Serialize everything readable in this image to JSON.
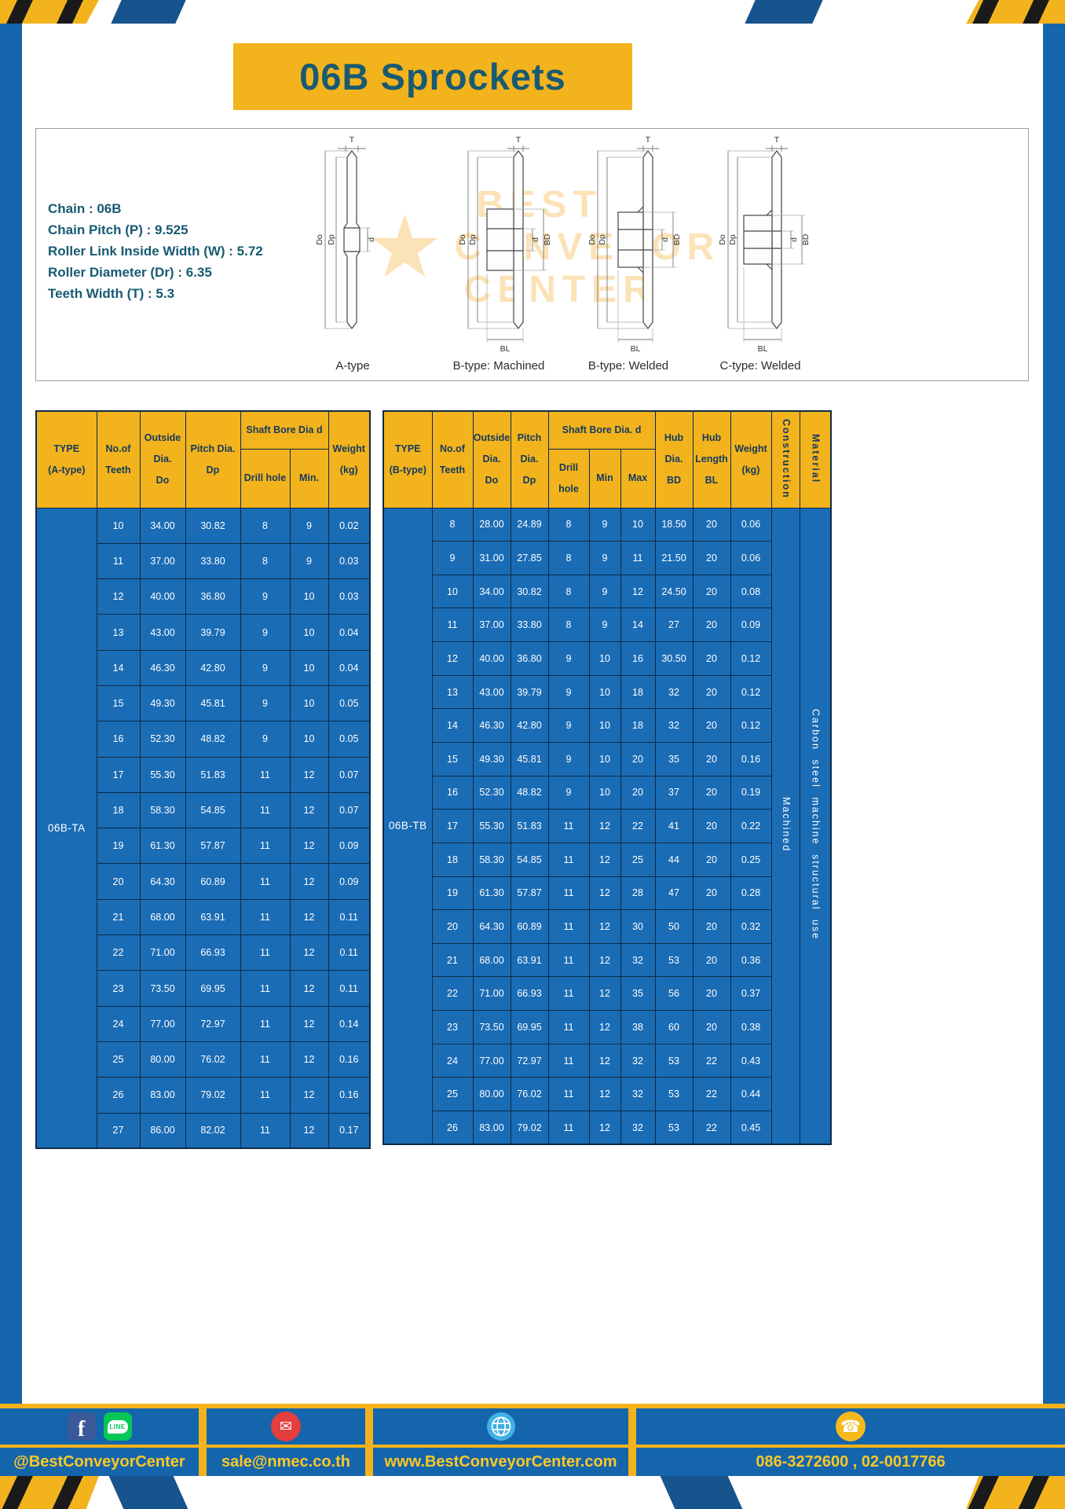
{
  "colors": {
    "frame_blue": "#1565ac",
    "cell_blue": "#1a6cb5",
    "accent_yellow": "#f2b31c",
    "header_text_navy": "#14395e",
    "title_teal": "#195a73",
    "footer_text_yellow": "#ffc726",
    "deco_blue": "#17538c",
    "facebook_blue": "#3b5998",
    "line_green": "#06c755",
    "mail_red": "#e53e3e",
    "globe_blue": "#41b0e4",
    "phone_gold": "#f5b91e"
  },
  "title": "06B Sprockets",
  "specs": [
    "Chain : 06B",
    "Chain Pitch (P) : 9.525",
    "Roller Link Inside Width (W) : 5.72",
    "Roller Diameter (Dr) : 6.35",
    "Teeth Width (T) : 5.3"
  ],
  "watermark": {
    "star": "★",
    "line1": "BEST",
    "line2": "CONVEYOR",
    "line3": "CENTER"
  },
  "diagram": {
    "captions": [
      "A-type",
      "B-type: Machined",
      "B-type: Welded",
      "C-type: Welded"
    ],
    "labels": {
      "t": "T",
      "do": "Do",
      "dp": "Dp",
      "d": "d",
      "bd": "BD",
      "bl": "BL"
    }
  },
  "table_a": {
    "headers": {
      "type": "TYPE\n(A-type)",
      "teeth": "No.of\nTeeth",
      "outside": "Outside\nDia.\nDo",
      "pitch": "Pitch Dia.\nDp",
      "shaft_bore": "Shaft Bore Dia d",
      "drill": "Drill hole",
      "min": "Min.",
      "weight": "Weight\n(kg)"
    },
    "type_value": "06B-TA",
    "rows": [
      [
        "10",
        "34.00",
        "30.82",
        "8",
        "9",
        "0.02"
      ],
      [
        "11",
        "37.00",
        "33.80",
        "8",
        "9",
        "0.03"
      ],
      [
        "12",
        "40.00",
        "36.80",
        "9",
        "10",
        "0.03"
      ],
      [
        "13",
        "43.00",
        "39.79",
        "9",
        "10",
        "0.04"
      ],
      [
        "14",
        "46.30",
        "42.80",
        "9",
        "10",
        "0.04"
      ],
      [
        "15",
        "49.30",
        "45.81",
        "9",
        "10",
        "0.05"
      ],
      [
        "16",
        "52.30",
        "48.82",
        "9",
        "10",
        "0.05"
      ],
      [
        "17",
        "55.30",
        "51.83",
        "11",
        "12",
        "0.07"
      ],
      [
        "18",
        "58.30",
        "54.85",
        "11",
        "12",
        "0.07"
      ],
      [
        "19",
        "61.30",
        "57.87",
        "11",
        "12",
        "0.09"
      ],
      [
        "20",
        "64.30",
        "60.89",
        "11",
        "12",
        "0.09"
      ],
      [
        "21",
        "68.00",
        "63.91",
        "11",
        "12",
        "0.11"
      ],
      [
        "22",
        "71.00",
        "66.93",
        "11",
        "12",
        "0.11"
      ],
      [
        "23",
        "73.50",
        "69.95",
        "11",
        "12",
        "0.11"
      ],
      [
        "24",
        "77.00",
        "72.97",
        "11",
        "12",
        "0.14"
      ],
      [
        "25",
        "80.00",
        "76.02",
        "11",
        "12",
        "0.16"
      ],
      [
        "26",
        "83.00",
        "79.02",
        "11",
        "12",
        "0.16"
      ],
      [
        "27",
        "86.00",
        "82.02",
        "11",
        "12",
        "0.17"
      ]
    ]
  },
  "table_b": {
    "headers": {
      "type": "TYPE\n(B-type)",
      "teeth": "No.of\nTeeth",
      "outside": "Outside\nDia.\nDo",
      "pitch": "Pitch\nDia.\nDp",
      "shaft_bore": "Shaft Bore Dia. d",
      "drill": "Drill hole",
      "min": "Min",
      "max": "Max",
      "hub_dia": "Hub\nDia.\nBD",
      "hub_len": "Hub\nLength\nBL",
      "weight": "Weight\n(kg)",
      "construction": "Construction",
      "material": "Material"
    },
    "type_value": "06B-TB",
    "construction_value": "Machined",
    "material_value": "Carbon steel machine structural use",
    "rows": [
      [
        "8",
        "28.00",
        "24.89",
        "8",
        "9",
        "10",
        "18.50",
        "20",
        "0.06"
      ],
      [
        "9",
        "31.00",
        "27.85",
        "8",
        "9",
        "11",
        "21.50",
        "20",
        "0.06"
      ],
      [
        "10",
        "34.00",
        "30.82",
        "8",
        "9",
        "12",
        "24.50",
        "20",
        "0.08"
      ],
      [
        "11",
        "37.00",
        "33.80",
        "8",
        "9",
        "14",
        "27",
        "20",
        "0.09"
      ],
      [
        "12",
        "40.00",
        "36.80",
        "9",
        "10",
        "16",
        "30.50",
        "20",
        "0.12"
      ],
      [
        "13",
        "43.00",
        "39.79",
        "9",
        "10",
        "18",
        "32",
        "20",
        "0.12"
      ],
      [
        "14",
        "46.30",
        "42.80",
        "9",
        "10",
        "18",
        "32",
        "20",
        "0.12"
      ],
      [
        "15",
        "49.30",
        "45.81",
        "9",
        "10",
        "20",
        "35",
        "20",
        "0.16"
      ],
      [
        "16",
        "52.30",
        "48.82",
        "9",
        "10",
        "20",
        "37",
        "20",
        "0.19"
      ],
      [
        "17",
        "55.30",
        "51.83",
        "11",
        "12",
        "22",
        "41",
        "20",
        "0.22"
      ],
      [
        "18",
        "58.30",
        "54.85",
        "11",
        "12",
        "25",
        "44",
        "20",
        "0.25"
      ],
      [
        "19",
        "61.30",
        "57.87",
        "11",
        "12",
        "28",
        "47",
        "20",
        "0.28"
      ],
      [
        "20",
        "64.30",
        "60.89",
        "11",
        "12",
        "30",
        "50",
        "20",
        "0.32"
      ],
      [
        "21",
        "68.00",
        "63.91",
        "11",
        "12",
        "32",
        "53",
        "20",
        "0.36"
      ],
      [
        "22",
        "71.00",
        "66.93",
        "11",
        "12",
        "35",
        "56",
        "20",
        "0.37"
      ],
      [
        "23",
        "73.50",
        "69.95",
        "11",
        "12",
        "38",
        "60",
        "20",
        "0.38"
      ],
      [
        "24",
        "77.00",
        "72.97",
        "11",
        "12",
        "32",
        "53",
        "22",
        "0.43"
      ],
      [
        "25",
        "80.00",
        "76.02",
        "11",
        "12",
        "32",
        "53",
        "22",
        "0.44"
      ],
      [
        "26",
        "83.00",
        "79.02",
        "11",
        "12",
        "32",
        "53",
        "22",
        "0.45"
      ]
    ]
  },
  "footer": {
    "social": "@BestConveyorCenter",
    "email": "sale@nmec.co.th",
    "website": "www.BestConveyorCenter.com",
    "phone": "086-3272600 , 02-0017766",
    "fb_letter": "f",
    "line_text": "LINE",
    "mail_glyph": "✉",
    "phone_glyph": "☎"
  }
}
